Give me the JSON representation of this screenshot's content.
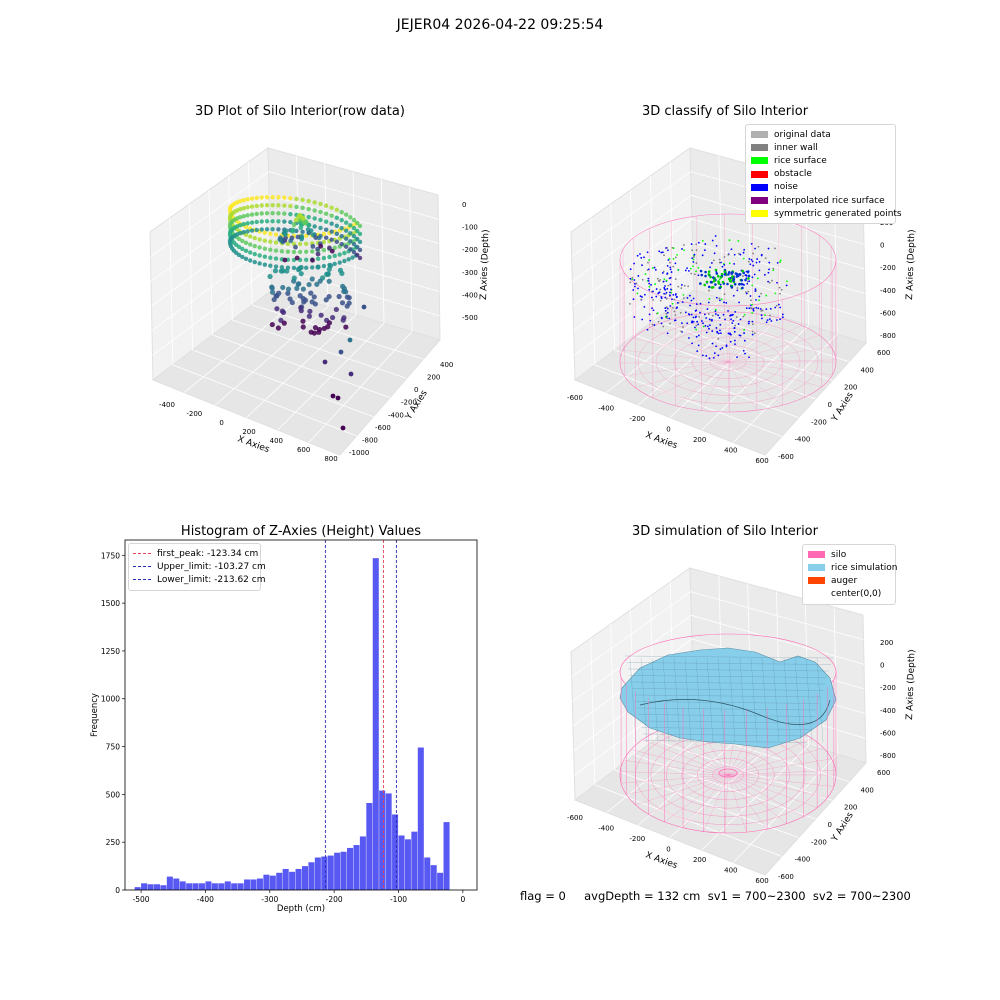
{
  "page": {
    "suptitle": "JEJER04 2026-04-22 09:25:54",
    "footer": "flag = 0     avgDepth = 132 cm  sv1 = 700~2300  sv2 = 700~2300"
  },
  "colors": {
    "hist_bar": "#4f4ff2",
    "first_peak": "#e8435a",
    "limit_line": "#2a2ab0",
    "silo_wire": "#ff69b4",
    "rice": "#87ceeb",
    "grid_pane": "#f2f2f2"
  },
  "chart_data": [
    {
      "type": "scatter",
      "title": "3D Plot of Silo Interior(row data)",
      "xlabel": "X Axies",
      "ylabel": "Y Axies",
      "zlabel": "Z Axies (Depth)",
      "x_ticks": [
        "-400",
        "-200",
        "0",
        "200",
        "400",
        "600",
        "800"
      ],
      "y_ticks": [
        "400",
        "200",
        "0",
        "-200",
        "-400",
        "-600",
        "-800",
        "-1000"
      ],
      "z_ticks": [
        "0",
        "-100",
        "-200",
        "-300",
        "-400",
        "-500"
      ],
      "colormap": "viridis",
      "description_points": {
        "x_range": [
          -400,
          800
        ],
        "y_range": [
          -1000,
          400
        ],
        "z_range": [
          -550,
          0
        ]
      }
    },
    {
      "type": "scatter",
      "title": "3D classify of Silo Interior",
      "xlabel": "X Axies",
      "ylabel": "Y Axies",
      "zlabel": "Z Axies (Depth)",
      "x_ticks": [
        "-600",
        "-400",
        "-200",
        "0",
        "200",
        "400",
        "600"
      ],
      "y_ticks": [
        "600",
        "400",
        "200",
        "0",
        "-200",
        "-400",
        "-600"
      ],
      "z_ticks": [
        "200",
        "0",
        "-200",
        "-400",
        "-600",
        "-800"
      ],
      "legend": [
        {
          "label": "original data",
          "color": "#b0b0b0"
        },
        {
          "label": "inner wall",
          "color": "#808080"
        },
        {
          "label": "rice surface",
          "color": "#00ff00"
        },
        {
          "label": "obstacle",
          "color": "#ff0000"
        },
        {
          "label": "noise",
          "color": "#0000ff"
        },
        {
          "label": "interpolated rice surface",
          "color": "#800080"
        },
        {
          "label": "symmetric generated points",
          "color": "#ffff00"
        }
      ]
    },
    {
      "type": "bar",
      "title": "Histogram of Z-Axies (Height) Values",
      "xlabel": "Depth (cm)",
      "ylabel": "Frequency",
      "xlim": [
        -525,
        22
      ],
      "ylim": [
        0,
        1830
      ],
      "x_ticks": [
        -500,
        -400,
        -300,
        -200,
        -100,
        0
      ],
      "y_ticks": [
        0,
        250,
        500,
        750,
        1000,
        1250,
        1500,
        1750
      ],
      "bin_start": -510,
      "bin_width": 10,
      "values": [
        15,
        35,
        30,
        30,
        25,
        70,
        60,
        45,
        35,
        35,
        35,
        45,
        35,
        35,
        45,
        35,
        35,
        55,
        55,
        60,
        80,
        75,
        90,
        110,
        95,
        110,
        125,
        145,
        170,
        175,
        180,
        195,
        200,
        220,
        235,
        280,
        455,
        1735,
        520,
        505,
        395,
        285,
        265,
        305,
        745,
        170,
        130,
        90,
        355
      ],
      "vlines": [
        {
          "x": -123.34,
          "label": "first_peak: -123.34 cm",
          "color": "#e8435a"
        },
        {
          "x": -103.27,
          "label": "Upper_limit: -103.27 cm",
          "color": "#2a2ab0"
        },
        {
          "x": -213.62,
          "label": "Lower_limit: -213.62 cm",
          "color": "#2a2ab0"
        }
      ],
      "legend_placement": "top-left"
    },
    {
      "type": "area",
      "title": "3D simulation of Silo Interior",
      "xlabel": "X Axies",
      "ylabel": "Y Axies",
      "zlabel": "Z Axies (Depth)",
      "x_ticks": [
        "-600",
        "-400",
        "-200",
        "0",
        "200",
        "400",
        "600"
      ],
      "y_ticks": [
        "600",
        "400",
        "200",
        "0",
        "-200",
        "-400",
        "-600"
      ],
      "z_ticks": [
        "200",
        "0",
        "-200",
        "-400",
        "-600",
        "-800"
      ],
      "legend": [
        {
          "label": "silo",
          "color": "#ff69b4"
        },
        {
          "label": "rice simulation",
          "color": "#87ceeb"
        },
        {
          "label": "auger",
          "color": "#ff4500"
        },
        {
          "label": "center(0,0)",
          "color": ""
        }
      ]
    }
  ]
}
